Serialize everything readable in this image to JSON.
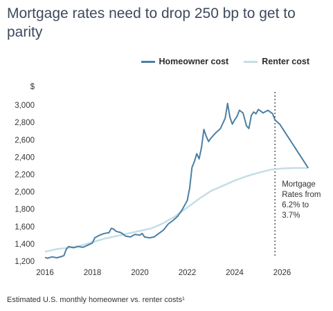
{
  "title": "Mortgage rates need to drop 250 bp to get to parity",
  "footnote": "Estimated U.S. monthly homeowner vs. renter costs¹",
  "colors": {
    "homeowner": "#4a7fa4",
    "renter": "#c5dde6",
    "marker": "#555555"
  },
  "chart_data": {
    "type": "line",
    "ylabel": "$",
    "xlim": [
      2016,
      2027.3
    ],
    "ylim": [
      1200,
      3120
    ],
    "x_ticks": [
      "2016",
      "2018",
      "2020",
      "2022",
      "2024",
      "2026"
    ],
    "y_ticks": [
      "1,200",
      "1,400",
      "1,600",
      "1,800",
      "2,000",
      "2,200",
      "2,400",
      "2,600",
      "2,800",
      "3,000"
    ],
    "grid": false,
    "legend_position": "top-right",
    "vertical_marker_x": 2025.7,
    "annotation": [
      "Mortgage",
      "Rates from",
      "6.2% to",
      "3.7%"
    ],
    "series": [
      {
        "name": "Homeowner cost",
        "points": [
          [
            2016.0,
            1245
          ],
          [
            2016.1,
            1235
          ],
          [
            2016.3,
            1250
          ],
          [
            2016.5,
            1240
          ],
          [
            2016.7,
            1255
          ],
          [
            2016.8,
            1265
          ],
          [
            2016.9,
            1340
          ],
          [
            2017.0,
            1370
          ],
          [
            2017.2,
            1355
          ],
          [
            2017.4,
            1370
          ],
          [
            2017.6,
            1360
          ],
          [
            2017.8,
            1385
          ],
          [
            2018.0,
            1410
          ],
          [
            2018.1,
            1470
          ],
          [
            2018.3,
            1500
          ],
          [
            2018.5,
            1520
          ],
          [
            2018.7,
            1530
          ],
          [
            2018.8,
            1580
          ],
          [
            2018.9,
            1570
          ],
          [
            2019.0,
            1545
          ],
          [
            2019.2,
            1530
          ],
          [
            2019.4,
            1490
          ],
          [
            2019.6,
            1480
          ],
          [
            2019.8,
            1510
          ],
          [
            2020.0,
            1500
          ],
          [
            2020.1,
            1520
          ],
          [
            2020.2,
            1480
          ],
          [
            2020.4,
            1470
          ],
          [
            2020.6,
            1480
          ],
          [
            2020.8,
            1520
          ],
          [
            2021.0,
            1560
          ],
          [
            2021.2,
            1630
          ],
          [
            2021.4,
            1670
          ],
          [
            2021.6,
            1720
          ],
          [
            2021.8,
            1800
          ],
          [
            2022.0,
            1900
          ],
          [
            2022.1,
            2040
          ],
          [
            2022.2,
            2280
          ],
          [
            2022.3,
            2350
          ],
          [
            2022.4,
            2440
          ],
          [
            2022.5,
            2380
          ],
          [
            2022.6,
            2510
          ],
          [
            2022.7,
            2720
          ],
          [
            2022.8,
            2640
          ],
          [
            2022.9,
            2580
          ],
          [
            2023.0,
            2620
          ],
          [
            2023.2,
            2680
          ],
          [
            2023.4,
            2730
          ],
          [
            2023.6,
            2850
          ],
          [
            2023.7,
            3020
          ],
          [
            2023.8,
            2860
          ],
          [
            2023.9,
            2780
          ],
          [
            2024.0,
            2830
          ],
          [
            2024.1,
            2870
          ],
          [
            2024.2,
            2940
          ],
          [
            2024.35,
            2910
          ],
          [
            2024.5,
            2760
          ],
          [
            2024.6,
            2730
          ],
          [
            2024.7,
            2880
          ],
          [
            2024.8,
            2920
          ],
          [
            2024.9,
            2900
          ],
          [
            2025.0,
            2950
          ],
          [
            2025.2,
            2910
          ],
          [
            2025.4,
            2940
          ],
          [
            2025.6,
            2900
          ],
          [
            2025.7,
            2830
          ],
          [
            2025.9,
            2780
          ],
          [
            2027.1,
            2275
          ]
        ]
      },
      {
        "name": "Renter cost",
        "points": [
          [
            2016.0,
            1310
          ],
          [
            2016.5,
            1340
          ],
          [
            2017.0,
            1355
          ],
          [
            2017.5,
            1380
          ],
          [
            2018.0,
            1420
          ],
          [
            2018.5,
            1460
          ],
          [
            2019.0,
            1490
          ],
          [
            2019.5,
            1520
          ],
          [
            2020.0,
            1550
          ],
          [
            2020.5,
            1580
          ],
          [
            2021.0,
            1640
          ],
          [
            2021.5,
            1720
          ],
          [
            2022.0,
            1820
          ],
          [
            2022.5,
            1920
          ],
          [
            2023.0,
            2010
          ],
          [
            2023.5,
            2070
          ],
          [
            2024.0,
            2130
          ],
          [
            2024.5,
            2180
          ],
          [
            2025.0,
            2220
          ],
          [
            2025.5,
            2255
          ],
          [
            2026.0,
            2270
          ],
          [
            2026.5,
            2275
          ],
          [
            2027.1,
            2275
          ]
        ]
      }
    ]
  }
}
